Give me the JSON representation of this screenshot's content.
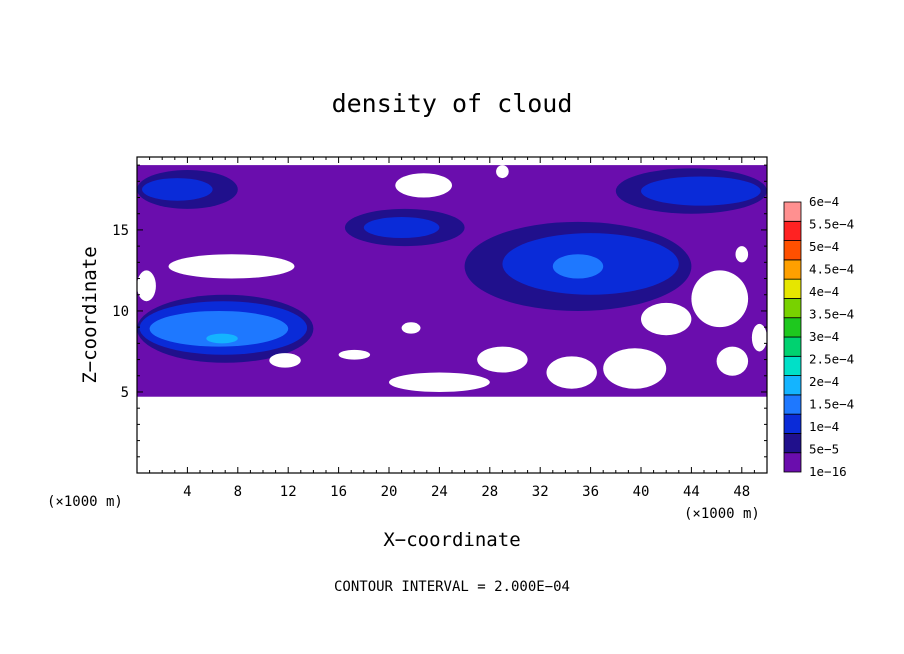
{
  "chart_data": {
    "type": "heatmap",
    "title": "density of cloud",
    "xlabel": "X−coordinate",
    "ylabel": "Z−coordinate",
    "x_unit": "(×1000 m)",
    "y_unit": "(×1000 m)",
    "x_unit_right": "(×1000 m)",
    "xlim": [
      0,
      50
    ],
    "ylim": [
      0,
      19.5
    ],
    "x_ticks": [
      4,
      8,
      12,
      16,
      20,
      24,
      28,
      32,
      36,
      40,
      44,
      48
    ],
    "y_ticks": [
      5,
      10,
      15
    ],
    "x_tick_labels": [
      "4",
      "8",
      "12",
      "16",
      "20",
      "24",
      "28",
      "32",
      "36",
      "40",
      "44",
      "48"
    ],
    "y_tick_labels": [
      "5",
      "10",
      "15"
    ],
    "footer": "CONTOUR INTERVAL = 2.000E−04",
    "colorbar": {
      "labels": [
        "1e−16",
        "5e−5",
        "1e−4",
        "1.5e−4",
        "2e−4",
        "2.5e−4",
        "3e−4",
        "3.5e−4",
        "4e−4",
        "4.5e−4",
        "5e−4",
        "5.5e−4",
        "6e−4"
      ],
      "levels": [
        1e-16,
        5e-05,
        0.0001,
        0.00015,
        0.0002,
        0.00025,
        0.0003,
        0.00035,
        0.0004,
        0.00045,
        0.0005,
        0.00055,
        0.0006
      ],
      "colors": [
        "#6a0dad",
        "#20108c",
        "#0a2bd8",
        "#1e78ff",
        "#14b4ff",
        "#00e0c8",
        "#00d270",
        "#1ec81e",
        "#78d200",
        "#e6e600",
        "#ffa000",
        "#ff5000",
        "#ff2222",
        "#ff9090"
      ]
    },
    "regions": [
      {
        "level": 1e-16,
        "x": [
          0,
          50
        ],
        "z": [
          4.7,
          19.0
        ]
      },
      {
        "level": 5e-05,
        "x": [
          0,
          8
        ],
        "z": [
          16.3,
          18.7
        ]
      },
      {
        "level": 0.0001,
        "x": [
          0.4,
          6
        ],
        "z": [
          16.8,
          18.2
        ]
      },
      {
        "level": 5e-05,
        "x": [
          38,
          50
        ],
        "z": [
          16.0,
          18.8
        ]
      },
      {
        "level": 0.0001,
        "x": [
          40,
          49.5
        ],
        "z": [
          16.5,
          18.3
        ]
      },
      {
        "level": 5e-05,
        "x": [
          16.5,
          26
        ],
        "z": [
          14.0,
          16.3
        ]
      },
      {
        "level": 0.0001,
        "x": [
          18,
          24
        ],
        "z": [
          14.5,
          15.8
        ]
      },
      {
        "level": 5e-05,
        "x": [
          26,
          44
        ],
        "z": [
          10.0,
          15.5
        ]
      },
      {
        "level": 0.0001,
        "x": [
          29,
          43
        ],
        "z": [
          11.0,
          14.8
        ]
      },
      {
        "level": 0.00015,
        "x": [
          33,
          37
        ],
        "z": [
          12.0,
          13.5
        ]
      },
      {
        "level": 5e-05,
        "x": [
          0,
          14
        ],
        "z": [
          6.8,
          11.0
        ]
      },
      {
        "level": 0.0001,
        "x": [
          0.2,
          13.5
        ],
        "z": [
          7.3,
          10.6
        ]
      },
      {
        "level": 0.00015,
        "x": [
          1,
          12
        ],
        "z": [
          7.8,
          10.0
        ]
      },
      {
        "level": 0.0002,
        "x": [
          5.5,
          8
        ],
        "z": [
          8.0,
          8.6
        ]
      }
    ],
    "blank_areas": [
      {
        "x": [
          0,
          50
        ],
        "z": [
          0,
          4.7
        ]
      },
      {
        "x": [
          0,
          1.5
        ],
        "z": [
          10.6,
          12.5
        ]
      },
      {
        "x": [
          2.5,
          12.5
        ],
        "z": [
          12.0,
          13.5
        ]
      },
      {
        "x": [
          20.5,
          25
        ],
        "z": [
          17.0,
          18.5
        ]
      },
      {
        "x": [
          28.5,
          29.5
        ],
        "z": [
          18.2,
          19.0
        ]
      },
      {
        "x": [
          21,
          22.5
        ],
        "z": [
          8.6,
          9.3
        ]
      },
      {
        "x": [
          27,
          31
        ],
        "z": [
          6.2,
          7.8
        ]
      },
      {
        "x": [
          20,
          28
        ],
        "z": [
          5.0,
          6.2
        ]
      },
      {
        "x": [
          32.5,
          36.5
        ],
        "z": [
          5.2,
          7.2
        ]
      },
      {
        "x": [
          37,
          42
        ],
        "z": [
          5.2,
          7.7
        ]
      },
      {
        "x": [
          40,
          44
        ],
        "z": [
          8.5,
          10.5
        ]
      },
      {
        "x": [
          44,
          48.5
        ],
        "z": [
          9.0,
          12.5
        ]
      },
      {
        "x": [
          46,
          48.5
        ],
        "z": [
          6.0,
          7.8
        ]
      },
      {
        "x": [
          48.8,
          50
        ],
        "z": [
          7.5,
          9.2
        ]
      },
      {
        "x": [
          47.5,
          48.5
        ],
        "z": [
          13.0,
          14.0
        ]
      },
      {
        "x": [
          10.5,
          13
        ],
        "z": [
          6.5,
          7.4
        ]
      },
      {
        "x": [
          16,
          18.5
        ],
        "z": [
          7.0,
          7.6
        ]
      }
    ]
  }
}
